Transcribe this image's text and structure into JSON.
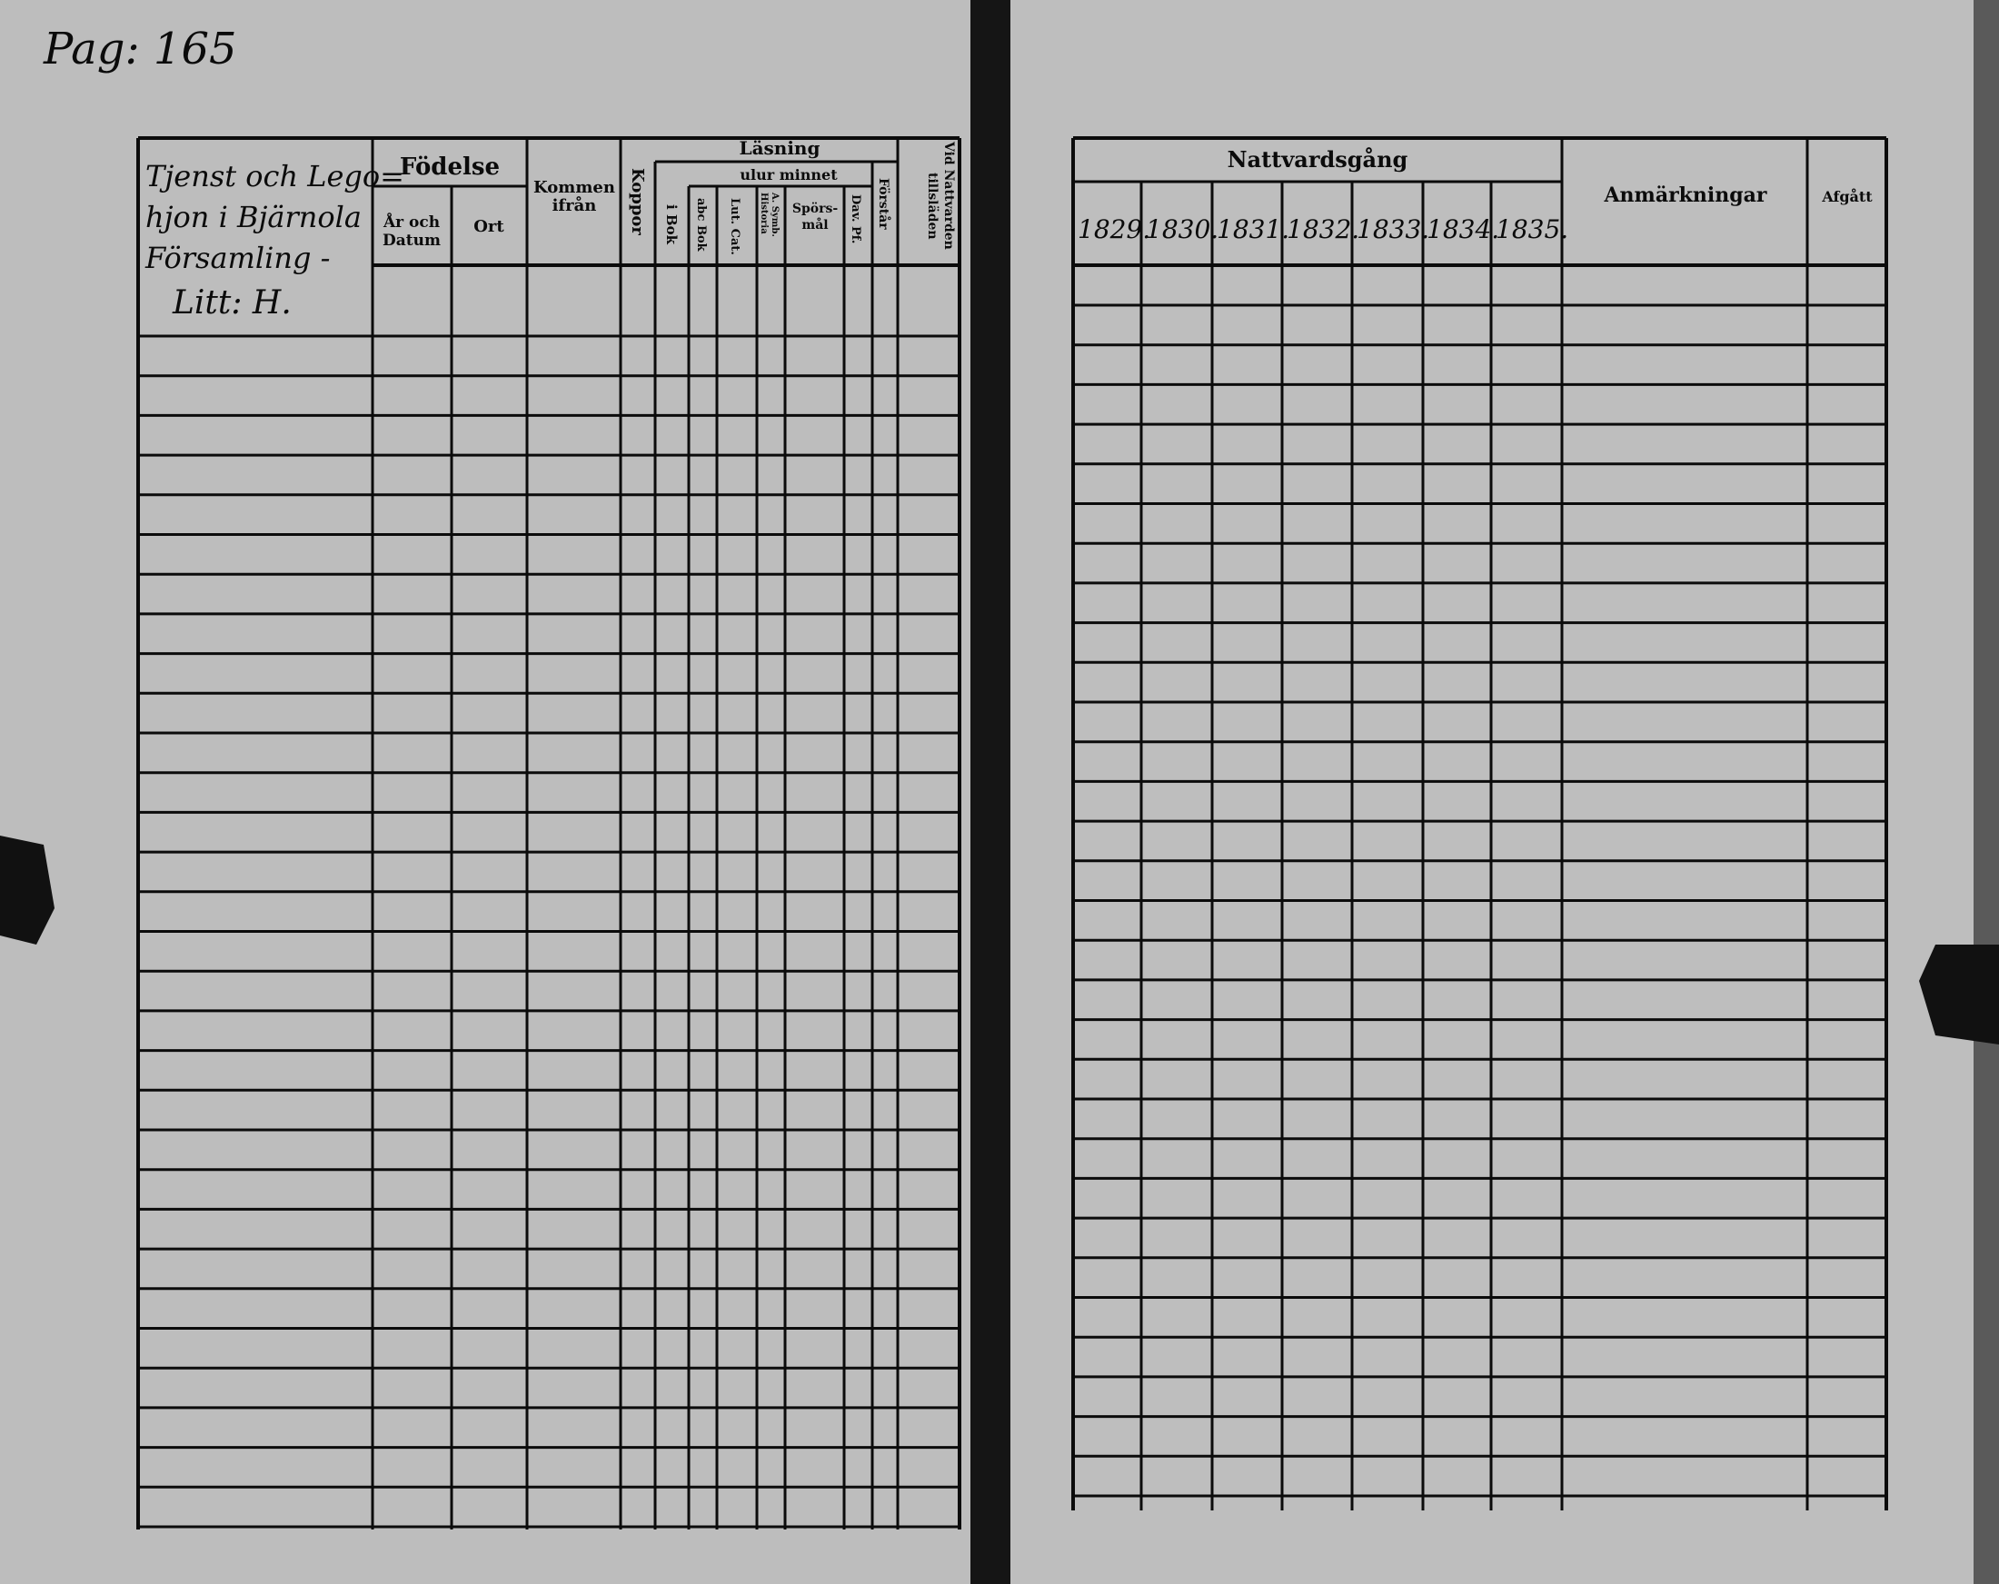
{
  "page_label": "Pag: 165",
  "left_page": {
    "section_title_lines": [
      "Tjenst och Lego=",
      "hjon i Bjärnola",
      "Församling -",
      "Litt: H."
    ],
    "headers": {
      "fodelse": "Födelse",
      "ar_och_datum": [
        "År och",
        "Datum"
      ],
      "ort": "Ort",
      "kommen_ifran": [
        "Kommen",
        "ifrån"
      ],
      "koppor": "Koppor",
      "lasning": "Läsning",
      "ur_minnet": "ulur minnet",
      "i_bok": "i Bok",
      "abc_bok": "abc Bok",
      "lut_cat": "Lut. Cat.",
      "a_symb_historia": [
        "A. Symb.",
        "Historia"
      ],
      "sporsmal": [
        "Spörs-",
        "mål"
      ],
      "dav_pf": "Dav. Pf.",
      "forstar": "Förstår",
      "vid_nattvarden": [
        "Vid Nattvarden",
        "tillsläden"
      ]
    }
  },
  "right_page": {
    "nattvardsgang": "Nattvardsgång",
    "years": [
      "1829.",
      "1830.",
      "1831.",
      "1832.",
      "1833.",
      "1834.",
      "1835."
    ],
    "anmarkningar": "Anmärkningar",
    "afgatt": "Afgått"
  },
  "colors": {
    "paper": "#bdbdbd",
    "ink": "#0b0b0b",
    "binding": "#151515"
  }
}
